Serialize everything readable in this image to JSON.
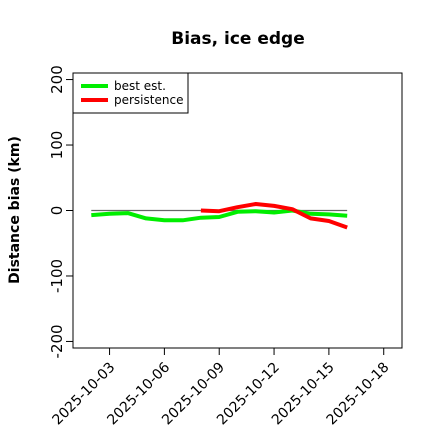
{
  "chart_data": {
    "type": "line",
    "title": "Bias, ice edge",
    "xlabel": "",
    "ylabel": "Distance bias (km)",
    "xlim": [
      "2025-10-01",
      "2025-10-19"
    ],
    "ylim": [
      -210,
      210
    ],
    "x_ticks": [
      "2025-10-03",
      "2025-10-06",
      "2025-10-09",
      "2025-10-12",
      "2025-10-15",
      "2025-10-18"
    ],
    "y_ticks": [
      -200,
      -100,
      0,
      100,
      200
    ],
    "y_tick_labels": [
      "-200",
      "-100",
      "0",
      "100",
      "200"
    ],
    "legend_position": "top-left",
    "reference_line": {
      "y": 0,
      "x_start": "2025-10-02",
      "x_end": "2025-10-16",
      "color": "#666666"
    },
    "series": [
      {
        "name": "best est.",
        "color": "#00ee00",
        "x": [
          "2025-10-02",
          "2025-10-03",
          "2025-10-04",
          "2025-10-05",
          "2025-10-06",
          "2025-10-07",
          "2025-10-08",
          "2025-10-09",
          "2025-10-10",
          "2025-10-11",
          "2025-10-12",
          "2025-10-13",
          "2025-10-14",
          "2025-10-15",
          "2025-10-16"
        ],
        "values": [
          -7,
          -5,
          -4,
          -12,
          -15,
          -15,
          -11,
          -10,
          -2,
          -1,
          -3,
          0,
          -5,
          -6,
          -8
        ]
      },
      {
        "name": "persistence",
        "color": "#ff0000",
        "x": [
          "2025-10-08",
          "2025-10-09",
          "2025-10-10",
          "2025-10-11",
          "2025-10-12",
          "2025-10-13",
          "2025-10-14",
          "2025-10-15",
          "2025-10-16"
        ],
        "values": [
          0,
          -1,
          5,
          10,
          7,
          2,
          -12,
          -16,
          -26
        ]
      }
    ]
  }
}
